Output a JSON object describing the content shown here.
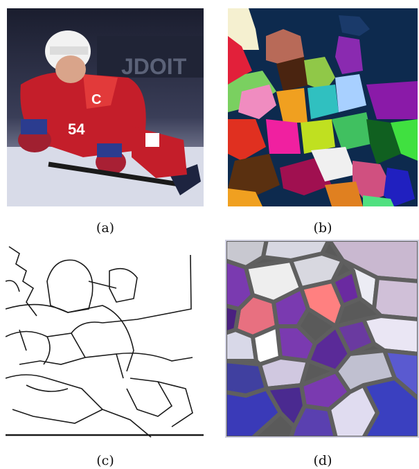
{
  "figure": {
    "panels": [
      {
        "id": "a",
        "caption": "(a)",
        "content": "photo of hockey player in red jersey"
      },
      {
        "id": "b",
        "caption": "(b)",
        "content": "color segmentation map"
      },
      {
        "id": "c",
        "caption": "(c)",
        "content": "region boundary line drawing"
      },
      {
        "id": "d",
        "caption": "(d)",
        "content": "stained glass rendering"
      }
    ],
    "jersey_letter": "C",
    "jersey_number": "54"
  },
  "colors": {
    "jersey_red": "#c8202a",
    "segmentation_bg": "#0d2a4e",
    "glass_purple": "#6a2aa0",
    "glass_lead": "#5a5a5a"
  }
}
